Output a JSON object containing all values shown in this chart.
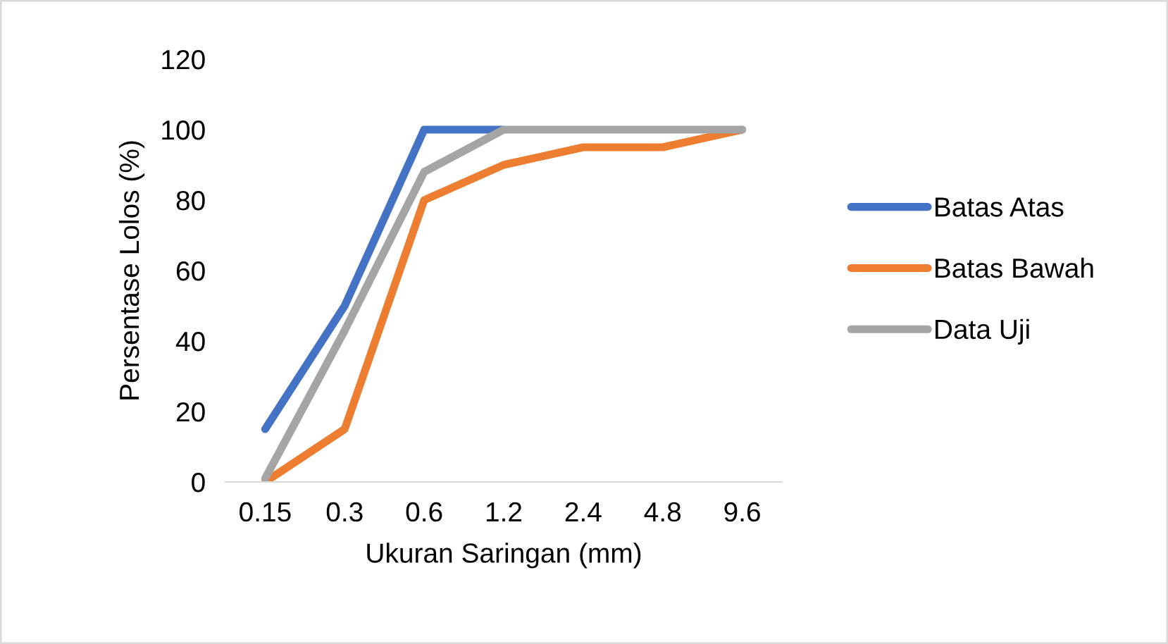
{
  "chart_data": {
    "type": "line",
    "xlabel": "Ukuran Saringan (mm)",
    "ylabel": "Persentase Lolos (%)",
    "categories": [
      "0.15",
      "0.3",
      "0.6",
      "1.2",
      "2.4",
      "4.8",
      "9.6"
    ],
    "series": [
      {
        "name": "Batas Atas",
        "color": "#4472c4",
        "values": [
          15,
          50,
          100,
          100,
          null,
          null,
          null
        ]
      },
      {
        "name": "Batas Bawah",
        "color": "#ed7d31",
        "values": [
          0,
          15,
          80,
          90,
          95,
          95,
          100
        ]
      },
      {
        "name": "Data Uji",
        "color": "#a5a5a5",
        "values": [
          1,
          43,
          88,
          100,
          100,
          100,
          100
        ]
      }
    ],
    "ylim": [
      0,
      120
    ],
    "yticks": [
      0,
      20,
      40,
      60,
      80,
      100,
      120
    ],
    "grid": false,
    "legend": "right",
    "marker": "none",
    "line_style": "solid"
  }
}
